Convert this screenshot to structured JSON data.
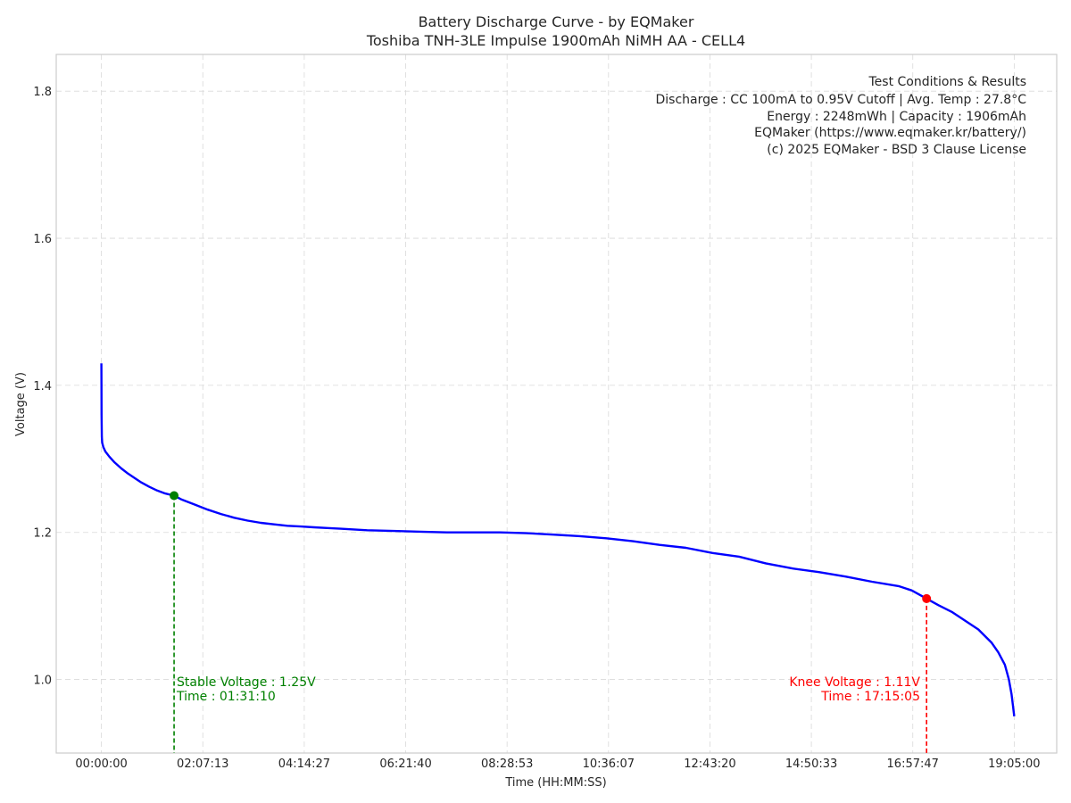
{
  "chart_data": {
    "type": "line",
    "title": "Battery Discharge Curve - by EQMaker",
    "subtitle": "Toshiba TNH-3LE Impulse 1900mAh NiMH AA - CELL4",
    "xlabel": "Time (HH:MM:SS)",
    "ylabel": "Voltage (V)",
    "x_unit": "seconds",
    "xlim": [
      -3400,
      71900
    ],
    "ylim": [
      0.9,
      1.85
    ],
    "x_ticks": [
      0,
      7633,
      15267,
      22900,
      30533,
      38167,
      45800,
      53433,
      61067,
      68700
    ],
    "x_tick_labels": [
      "00:00:00",
      "02:07:13",
      "04:14:27",
      "06:21:40",
      "08:28:53",
      "10:36:07",
      "12:43:20",
      "14:50:33",
      "16:57:47",
      "19:05:00"
    ],
    "y_ticks": [
      1.0,
      1.2,
      1.4,
      1.6,
      1.8
    ],
    "y_tick_labels": [
      "1.0",
      "1.2",
      "1.4",
      "1.6",
      "1.8"
    ],
    "grid": true,
    "series": [
      {
        "name": "Voltage",
        "color": "#0000ff",
        "x": [
          0,
          5,
          15,
          30,
          60,
          150,
          300,
          600,
          1000,
          1500,
          2000,
          2500,
          3000,
          3600,
          4200,
          4800,
          5470,
          6000,
          7000,
          8000,
          9000,
          10000,
          11000,
          12000,
          13000,
          14000,
          15000,
          16000,
          17000,
          18000,
          20000,
          22000,
          24000,
          26000,
          28000,
          30000,
          32000,
          34000,
          36000,
          38000,
          40000,
          42000,
          44000,
          46000,
          48000,
          50000,
          52000,
          54000,
          56000,
          58000,
          60000,
          61000,
          62105,
          63000,
          64000,
          65000,
          66000,
          67000,
          67500,
          68000,
          68300,
          68500,
          68600,
          68700
        ],
        "y": [
          1.43,
          1.4,
          1.36,
          1.33,
          1.322,
          1.316,
          1.31,
          1.303,
          1.295,
          1.287,
          1.28,
          1.274,
          1.268,
          1.262,
          1.257,
          1.253,
          1.25,
          1.245,
          1.238,
          1.231,
          1.225,
          1.22,
          1.216,
          1.213,
          1.211,
          1.209,
          1.208,
          1.207,
          1.206,
          1.205,
          1.203,
          1.202,
          1.201,
          1.2,
          1.2,
          1.2,
          1.199,
          1.197,
          1.195,
          1.192,
          1.188,
          1.183,
          1.179,
          1.172,
          1.167,
          1.158,
          1.151,
          1.146,
          1.14,
          1.133,
          1.127,
          1.121,
          1.11,
          1.101,
          1.092,
          1.08,
          1.068,
          1.05,
          1.037,
          1.02,
          1.0,
          0.98,
          0.965,
          0.95
        ]
      }
    ],
    "markers": [
      {
        "name": "stable",
        "x": 5470,
        "y": 1.25,
        "color": "#008000"
      },
      {
        "name": "knee",
        "x": 62105,
        "y": 1.11,
        "color": "#ff0000"
      }
    ],
    "annotations": {
      "stable_voltage": "Stable Voltage : 1.25V",
      "stable_time": "Time : 01:31:10",
      "knee_voltage": "Knee Voltage : 1.11V",
      "knee_time": "Time : 17:15:05"
    },
    "info_box": [
      "Test Conditions & Results",
      "Discharge : CC 100mA to 0.95V Cutoff | Avg. Temp : 27.8°C",
      "Energy : 2248mWh | Capacity : 1906mAh",
      "EQMaker (https://www.eqmaker.kr/battery/)",
      "(c) 2025 EQMaker - BSD 3 Clause License"
    ]
  }
}
